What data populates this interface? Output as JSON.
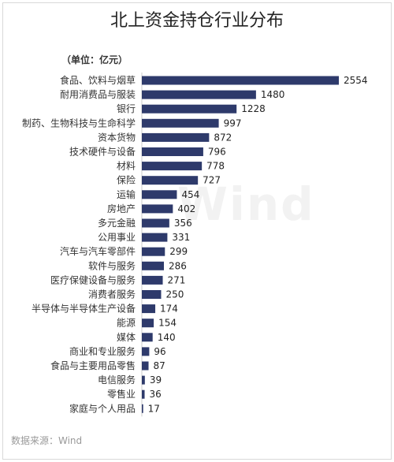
{
  "chart_data": {
    "type": "bar",
    "orientation": "horizontal",
    "title": "北上资金持仓行业分布",
    "unit_note": "（单位：亿元）",
    "source": "数据来源：Wind",
    "watermark": "Wind",
    "bar_color": "#2e3a6b",
    "categories": [
      "食品、饮料与烟草",
      "耐用消费品与服装",
      "银行",
      "制药、生物科技与生命科学",
      "资本货物",
      "技术硬件与设备",
      "材料",
      "保险",
      "运输",
      "房地产",
      "多元金融",
      "公用事业",
      "汽车与汽车零部件",
      "软件与服务",
      "医疗保健设备与服务",
      "消费者服务",
      "半导体与半导体生产设备",
      "能源",
      "媒体",
      "商业和专业服务",
      "食品与主要用品零售",
      "电信服务",
      "零售业",
      "家庭与个人用品"
    ],
    "values": [
      2554,
      1480,
      1228,
      997,
      872,
      796,
      778,
      727,
      454,
      402,
      356,
      331,
      299,
      286,
      271,
      250,
      174,
      154,
      140,
      96,
      87,
      39,
      36,
      17
    ],
    "xlim": [
      0,
      2554
    ]
  }
}
